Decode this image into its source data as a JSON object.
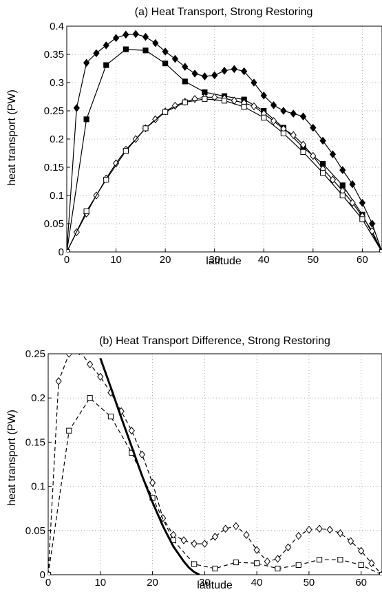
{
  "chart_data": [
    {
      "type": "line",
      "title": "(a) Heat Transport, Strong Restoring",
      "xlabel": "latitude",
      "ylabel": "heat transport (PW)",
      "xlim": [
        0,
        64
      ],
      "ylim": [
        0,
        0.4
      ],
      "grid": "dotted",
      "xticks": [
        0,
        10,
        20,
        30,
        40,
        50,
        60
      ],
      "xtick_labels": [
        "0",
        "10",
        "20",
        "30",
        "40",
        "50",
        "60"
      ],
      "yticks": [
        0,
        0.05,
        0.1,
        0.15,
        0.2,
        0.25,
        0.3,
        0.35,
        0.4
      ],
      "ytick_labels": [
        "0",
        "0.05",
        "0.1",
        "0.15",
        "0.2",
        "0.25",
        "0.3",
        "0.35",
        "0.4"
      ],
      "series": [
        {
          "marker": "filled-diamond",
          "line": "solid",
          "x": [
            0,
            2,
            4,
            6,
            8,
            10,
            12,
            14,
            16,
            18,
            20,
            22,
            24,
            26,
            28,
            30,
            32,
            34,
            36,
            38,
            40,
            42,
            44,
            46,
            48,
            50,
            52,
            54,
            56,
            58,
            60,
            62,
            64
          ],
          "y": [
            0,
            0.255,
            0.335,
            0.352,
            0.366,
            0.379,
            0.385,
            0.386,
            0.381,
            0.37,
            0.355,
            0.342,
            0.328,
            0.316,
            0.311,
            0.313,
            0.321,
            0.324,
            0.32,
            0.3,
            0.277,
            0.26,
            0.25,
            0.245,
            0.24,
            0.22,
            0.197,
            0.173,
            0.145,
            0.12,
            0.087,
            0.05,
            0
          ]
        },
        {
          "marker": "filled-square",
          "line": "solid",
          "x": [
            0,
            4,
            8,
            12,
            16,
            20,
            24,
            28,
            32,
            36,
            40,
            44,
            48,
            52,
            56,
            60,
            64
          ],
          "y": [
            0,
            0.235,
            0.331,
            0.359,
            0.357,
            0.334,
            0.302,
            0.283,
            0.276,
            0.27,
            0.25,
            0.22,
            0.185,
            0.156,
            0.118,
            0.066,
            0
          ]
        },
        {
          "marker": "open-diamond",
          "line": "solid",
          "x": [
            0,
            2,
            4,
            6,
            8,
            10,
            12,
            14,
            16,
            18,
            20,
            22,
            24,
            26,
            28,
            30,
            32,
            34,
            36,
            38,
            40,
            42,
            44,
            46,
            48,
            50,
            52,
            54,
            56,
            58,
            60,
            62,
            64
          ],
          "y": [
            0,
            0.035,
            0.068,
            0.1,
            0.13,
            0.157,
            0.181,
            0.2,
            0.219,
            0.235,
            0.249,
            0.259,
            0.266,
            0.271,
            0.274,
            0.274,
            0.272,
            0.268,
            0.264,
            0.258,
            0.245,
            0.232,
            0.218,
            0.207,
            0.19,
            0.17,
            0.147,
            0.128,
            0.108,
            0.087,
            0.063,
            0.037,
            0
          ]
        },
        {
          "marker": "open-square",
          "line": "solid",
          "x": [
            0,
            4,
            8,
            12,
            16,
            20,
            24,
            28,
            32,
            36,
            40,
            44,
            48,
            52,
            56,
            60,
            64
          ],
          "y": [
            0,
            0.072,
            0.128,
            0.179,
            0.219,
            0.248,
            0.265,
            0.271,
            0.268,
            0.257,
            0.238,
            0.21,
            0.177,
            0.14,
            0.1,
            0.058,
            0
          ]
        }
      ]
    },
    {
      "type": "line",
      "title": "(b) Heat Transport Difference, Strong Restoring",
      "xlabel": "latitude",
      "ylabel": "heat transport (PW)",
      "xlim": [
        0,
        64
      ],
      "ylim": [
        0,
        0.25
      ],
      "grid": "dotted",
      "xticks": [
        0,
        10,
        20,
        30,
        40,
        50,
        60
      ],
      "xtick_labels": [
        "0",
        "10",
        "20",
        "30",
        "40",
        "50",
        "60"
      ],
      "yticks": [
        0,
        0.05,
        0.1,
        0.15,
        0.2,
        0.25
      ],
      "ytick_labels": [
        "0",
        "0.05",
        "0.1",
        "0.15",
        "0.2",
        "0.25"
      ],
      "series": [
        {
          "marker": "open-diamond",
          "line": "dashed",
          "x": [
            0,
            2,
            4,
            6,
            8,
            10,
            12,
            14,
            16,
            18,
            20,
            22,
            24,
            26,
            28,
            30,
            32,
            34,
            36,
            38,
            40,
            42,
            44,
            46,
            48,
            50,
            52,
            54,
            56,
            58,
            60,
            62,
            64
          ],
          "y": [
            0,
            0.219,
            0.25,
            0.253,
            0.238,
            0.224,
            0.206,
            0.185,
            0.163,
            0.136,
            0.104,
            0.064,
            0.045,
            0.039,
            0.035,
            0.035,
            0.043,
            0.052,
            0.055,
            0.045,
            0.028,
            0.015,
            0.018,
            0.031,
            0.044,
            0.051,
            0.052,
            0.051,
            0.047,
            0.038,
            0.027,
            0.013,
            0
          ]
        },
        {
          "marker": "open-square",
          "line": "dashed",
          "x": [
            0,
            4,
            8,
            12,
            16,
            20,
            24,
            28,
            32,
            36,
            40,
            44,
            48,
            52,
            56,
            60,
            64
          ],
          "y": [
            0,
            0.163,
            0.2,
            0.179,
            0.138,
            0.087,
            0.039,
            0.012,
            0.007,
            0.014,
            0.013,
            0.007,
            0.011,
            0.017,
            0.017,
            0.011,
            0
          ]
        },
        {
          "marker": "none",
          "line": "thick-solid",
          "x": [
            10,
            12,
            14,
            16,
            18,
            20,
            22,
            24,
            26,
            27,
            28,
            29
          ],
          "y": [
            0.245,
            0.212,
            0.178,
            0.145,
            0.112,
            0.082,
            0.055,
            0.032,
            0.015,
            0.008,
            0.003,
            0
          ]
        }
      ]
    }
  ]
}
